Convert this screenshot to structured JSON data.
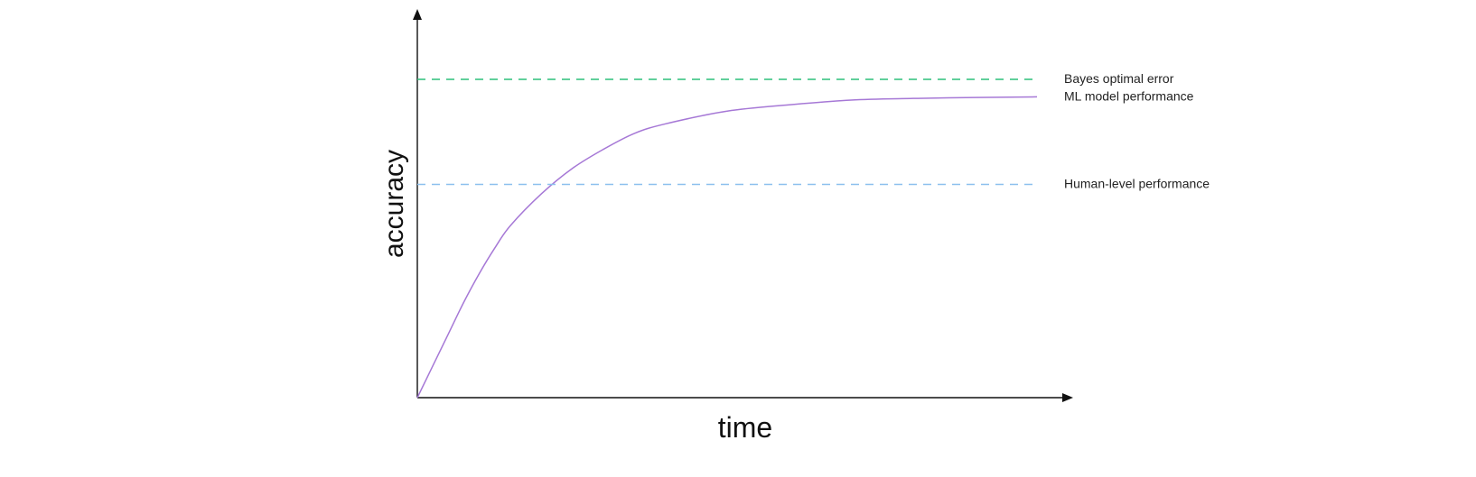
{
  "chart_data": {
    "type": "line",
    "title": "",
    "xlabel": "time",
    "ylabel": "accuracy",
    "grid": false,
    "legend": "none",
    "x_range": [
      0,
      10
    ],
    "y_range": [
      0,
      1
    ],
    "series": [
      {
        "name": "Bayes optimal error",
        "style": "dashed",
        "color": "#2dbf7a",
        "x": [
          0,
          10
        ],
        "y": [
          1.0,
          1.0
        ]
      },
      {
        "name": "ML model performance",
        "style": "solid",
        "color": "#a678d6",
        "x": [
          0,
          0.25,
          0.5,
          0.75,
          1.0,
          1.25,
          1.5,
          2.0,
          2.5,
          3.0,
          3.5,
          4.0,
          5.0,
          6.0,
          7.0,
          8.0,
          9.0,
          10.0
        ],
        "y": [
          0.0,
          0.1,
          0.2,
          0.3,
          0.39,
          0.47,
          0.54,
          0.64,
          0.72,
          0.78,
          0.83,
          0.86,
          0.9,
          0.92,
          0.935,
          0.94,
          0.943,
          0.945
        ]
      },
      {
        "name": "Human-level performance",
        "style": "dashed",
        "color": "#8cc0ee",
        "x": [
          0,
          10
        ],
        "y": [
          0.67,
          0.67
        ]
      }
    ]
  }
}
